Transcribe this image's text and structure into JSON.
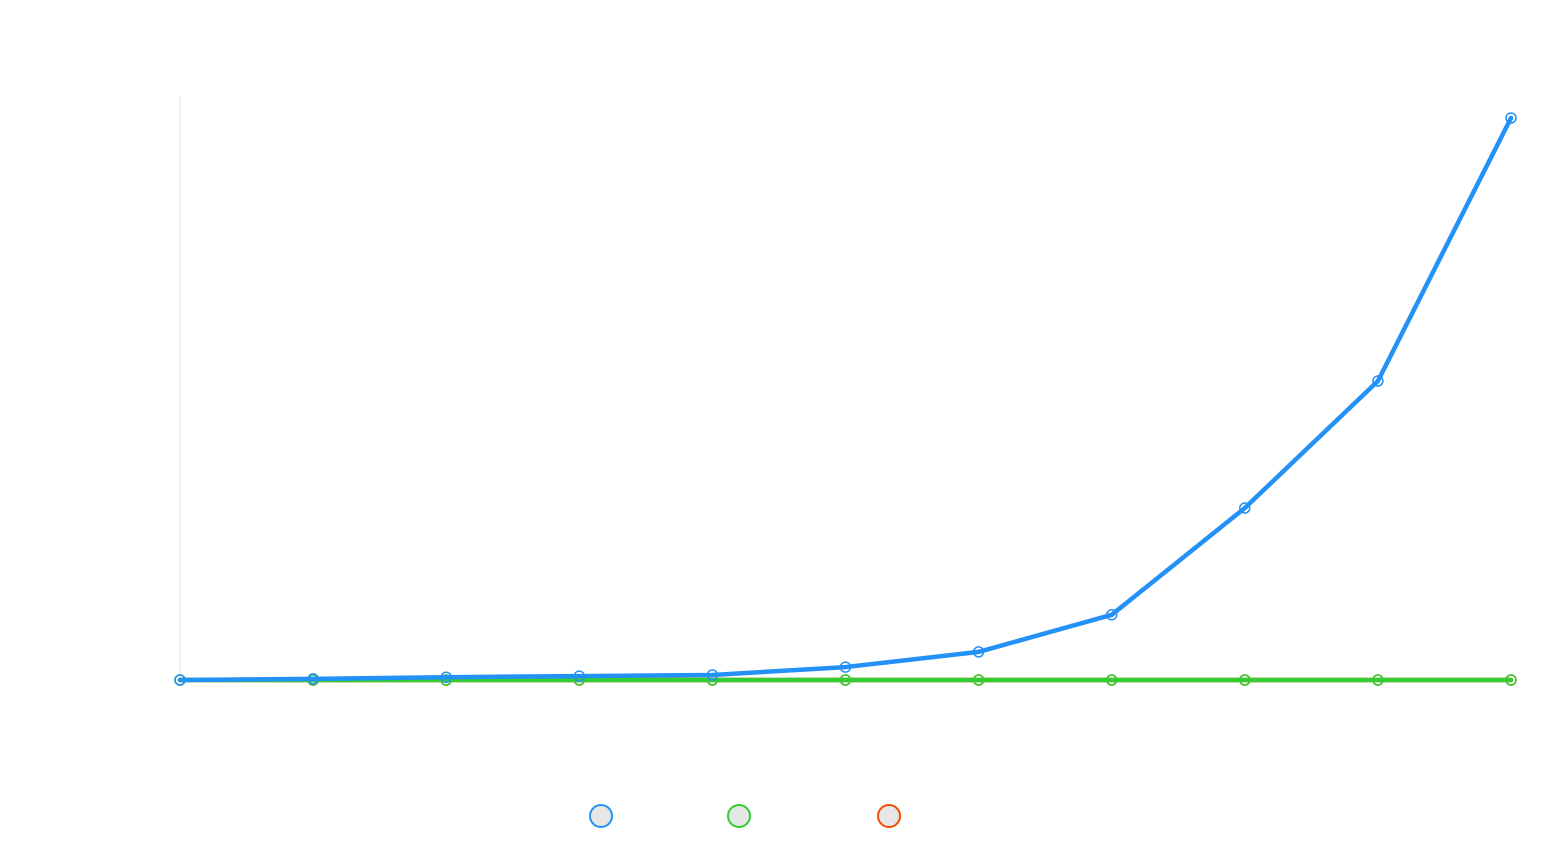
{
  "chart_data": {
    "type": "line",
    "categories": [
      null,
      null,
      null,
      null,
      null,
      null,
      null,
      null,
      null,
      null,
      null
    ],
    "series": [
      {
        "color": "#f04e00",
        "values": [
          0,
          0,
          0,
          0,
          0,
          0,
          0,
          0,
          0,
          0,
          0
        ]
      },
      {
        "color": "#33cc33",
        "values": [
          0,
          0,
          0,
          0,
          0,
          0,
          0,
          0,
          0,
          0,
          0
        ]
      },
      {
        "color": "#2391f5",
        "values": [
          0,
          0.2,
          0.5,
          0.7,
          0.9,
          2.3,
          5.0,
          11.6,
          30.6,
          53.2,
          100
        ]
      }
    ],
    "ylim": [
      0,
      100
    ],
    "legend": "bottom"
  }
}
